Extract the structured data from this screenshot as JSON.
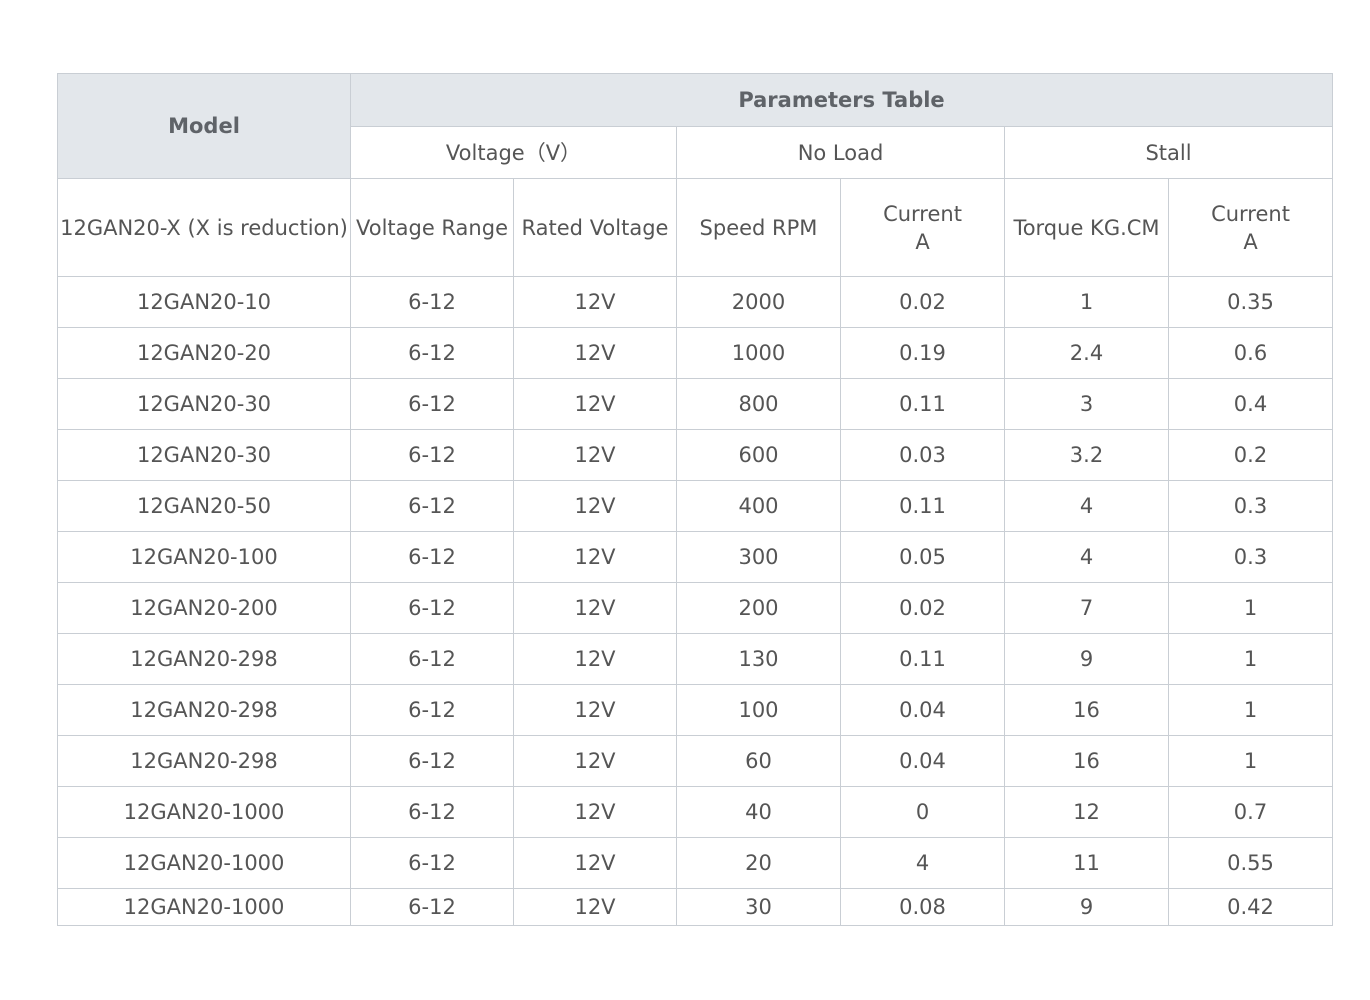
{
  "header": {
    "model": "Model",
    "title": "Parameters Table",
    "groups": [
      "Voltage（V）",
      "No Load",
      "Stall"
    ],
    "columns": [
      [
        "12GAN20-X (X is reduction)"
      ],
      [
        "Voltage Range"
      ],
      [
        "Rated Voltage"
      ],
      [
        "Speed RPM"
      ],
      [
        "Current",
        "A"
      ],
      [
        "Torque KG.CM"
      ],
      [
        "Current",
        "A"
      ]
    ]
  },
  "table": {
    "rows": [
      [
        "12GAN20-10",
        "6-12",
        "12V",
        2000,
        0.02,
        1,
        0.35
      ],
      [
        "12GAN20-20",
        "6-12",
        "12V",
        1000,
        0.19,
        2.4,
        0.6
      ],
      [
        "12GAN20-30",
        "6-12",
        "12V",
        800,
        0.11,
        3,
        0.4
      ],
      [
        "12GAN20-30",
        "6-12",
        "12V",
        600,
        0.03,
        3.2,
        0.2
      ],
      [
        "12GAN20-50",
        "6-12",
        "12V",
        400,
        0.11,
        4,
        0.3
      ],
      [
        "12GAN20-100",
        "6-12",
        "12V",
        300,
        0.05,
        4,
        0.3
      ],
      [
        "12GAN20-200",
        "6-12",
        "12V",
        200,
        0.02,
        7,
        1
      ],
      [
        "12GAN20-298",
        "6-12",
        "12V",
        130,
        0.11,
        9,
        1
      ],
      [
        "12GAN20-298",
        "6-12",
        "12V",
        100,
        0.04,
        16,
        1
      ],
      [
        "12GAN20-298",
        "6-12",
        "12V",
        60,
        0.04,
        16,
        1
      ],
      [
        "12GAN20-1000",
        "6-12",
        "12V",
        40,
        0,
        12,
        0.7
      ],
      [
        "12GAN20-1000",
        "6-12",
        "12V",
        20,
        4,
        11,
        0.55
      ],
      [
        "12GAN20-1000",
        "6-12",
        "12V",
        30,
        0.08,
        9,
        0.42
      ]
    ]
  }
}
